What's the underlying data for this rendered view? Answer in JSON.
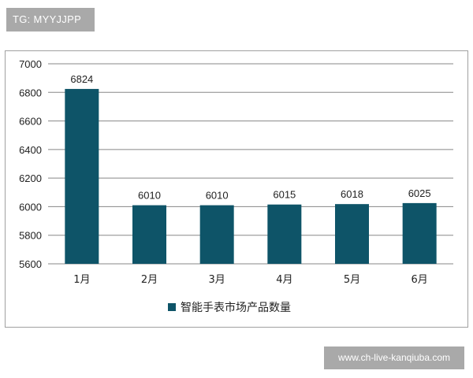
{
  "watermark": {
    "tag_text": "TG: MYYJJPP",
    "site_text": "www.ch-live-kanqiuba.com"
  },
  "colors": {
    "bar": "#0e5468",
    "grid": "#878787",
    "text": "#222222"
  },
  "chart_data": {
    "type": "bar",
    "categories": [
      "1月",
      "2月",
      "3月",
      "4月",
      "5月",
      "6月"
    ],
    "series": [
      {
        "name": "智能手表市场产品数量",
        "values": [
          6824,
          6010,
          6010,
          6015,
          6018,
          6025
        ]
      }
    ],
    "data_labels": [
      "6824",
      "6010",
      "6010",
      "6015",
      "6018",
      "6025"
    ],
    "yticks": [
      5600,
      5800,
      6000,
      6200,
      6400,
      6600,
      6800,
      7000
    ],
    "ylim": [
      5600,
      7000
    ],
    "grid": true,
    "legend_position": "bottom"
  }
}
